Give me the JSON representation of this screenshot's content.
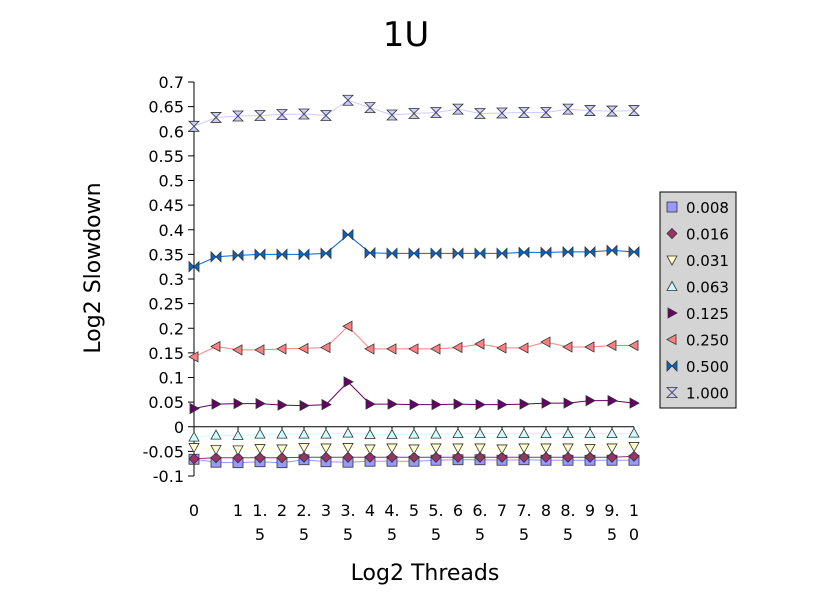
{
  "chart_data": {
    "type": "line",
    "title": "1U",
    "xlabel": "Log2 Threads",
    "ylabel": "Log2 Slowdown",
    "ylim": [
      -0.1,
      0.7
    ],
    "xlim": [
      0,
      10
    ],
    "yticks": [
      "-0.1",
      "-0.05",
      "0",
      "0.05",
      "0.1",
      "0.15",
      "0.2",
      "0.25",
      "0.3",
      "0.35",
      "0.4",
      "0.45",
      "0.5",
      "0.55",
      "0.6",
      "0.65",
      "0.7"
    ],
    "xticks": [
      {
        "value": 0,
        "line1": "0",
        "line2": ""
      },
      {
        "value": 1,
        "line1": "1",
        "line2": ""
      },
      {
        "value": 1.5,
        "line1": "1.",
        "line2": "5"
      },
      {
        "value": 2,
        "line1": "2",
        "line2": ""
      },
      {
        "value": 2.5,
        "line1": "2.",
        "line2": "5"
      },
      {
        "value": 3,
        "line1": "3",
        "line2": ""
      },
      {
        "value": 3.5,
        "line1": "3.",
        "line2": "5"
      },
      {
        "value": 4,
        "line1": "4",
        "line2": ""
      },
      {
        "value": 4.5,
        "line1": "4.",
        "line2": "5"
      },
      {
        "value": 5,
        "line1": "5",
        "line2": ""
      },
      {
        "value": 5.5,
        "line1": "5.",
        "line2": "5"
      },
      {
        "value": 6,
        "line1": "6",
        "line2": ""
      },
      {
        "value": 6.5,
        "line1": "6.",
        "line2": "5"
      },
      {
        "value": 7,
        "line1": "7",
        "line2": ""
      },
      {
        "value": 7.5,
        "line1": "7.",
        "line2": "5"
      },
      {
        "value": 8,
        "line1": "8",
        "line2": ""
      },
      {
        "value": 8.5,
        "line1": "8.",
        "line2": "5"
      },
      {
        "value": 9,
        "line1": "9",
        "line2": ""
      },
      {
        "value": 9.5,
        "line1": "9.",
        "line2": "5"
      },
      {
        "value": 10,
        "line1": "1",
        "line2": "0"
      }
    ],
    "x": [
      0,
      0.5,
      1,
      1.5,
      2,
      2.5,
      3,
      3.5,
      4,
      4.5,
      5,
      5.5,
      6,
      6.5,
      7,
      7.5,
      8,
      8.5,
      9,
      9.5,
      10
    ],
    "legend_position": "right",
    "grid": false,
    "series": [
      {
        "name": "0.008",
        "marker": "square",
        "color": "#9999ff",
        "line": "#9999ff",
        "values": [
          -0.066,
          -0.072,
          -0.073,
          -0.071,
          -0.073,
          -0.067,
          -0.071,
          -0.072,
          -0.07,
          -0.07,
          -0.07,
          -0.068,
          -0.067,
          -0.067,
          -0.068,
          -0.067,
          -0.068,
          -0.068,
          -0.068,
          -0.068,
          -0.068
        ]
      },
      {
        "name": "0.016",
        "marker": "diamond",
        "color": "#993366",
        "line": "#993366",
        "values": [
          -0.065,
          -0.063,
          -0.063,
          -0.063,
          -0.063,
          -0.062,
          -0.062,
          -0.062,
          -0.062,
          -0.062,
          -0.062,
          -0.062,
          -0.062,
          -0.062,
          -0.062,
          -0.062,
          -0.062,
          -0.062,
          -0.062,
          -0.062,
          -0.06
        ]
      },
      {
        "name": "0.031",
        "marker": "triangle-down",
        "color": "#ffffcc",
        "line": "#ffffcc",
        "values": [
          -0.042,
          -0.046,
          -0.047,
          -0.044,
          -0.045,
          -0.042,
          -0.043,
          -0.042,
          -0.045,
          -0.043,
          -0.045,
          -0.043,
          -0.043,
          -0.043,
          -0.045,
          -0.043,
          -0.043,
          -0.043,
          -0.044,
          -0.043,
          -0.04
        ]
      },
      {
        "name": "0.063",
        "marker": "triangle-up",
        "color": "#ccffff",
        "line": "#ccffff",
        "values": [
          -0.021,
          -0.017,
          -0.018,
          -0.015,
          -0.015,
          -0.015,
          -0.015,
          -0.013,
          -0.016,
          -0.016,
          -0.015,
          -0.015,
          -0.014,
          -0.014,
          -0.014,
          -0.014,
          -0.014,
          -0.014,
          -0.014,
          -0.014,
          -0.013
        ]
      },
      {
        "name": "0.125",
        "marker": "triangle-right",
        "color": "#660066",
        "line": "#660066",
        "values": [
          0.037,
          0.046,
          0.047,
          0.047,
          0.044,
          0.043,
          0.045,
          0.091,
          0.046,
          0.046,
          0.045,
          0.045,
          0.046,
          0.045,
          0.045,
          0.046,
          0.048,
          0.048,
          0.053,
          0.053,
          0.048
        ]
      },
      {
        "name": "0.250",
        "marker": "triangle-left",
        "color": "#ff8080",
        "line": "#ff8080",
        "values": [
          0.142,
          0.163,
          0.156,
          0.156,
          0.158,
          0.159,
          0.161,
          0.204,
          0.158,
          0.158,
          0.158,
          0.158,
          0.161,
          0.168,
          0.16,
          0.16,
          0.172,
          0.162,
          0.162,
          0.165,
          0.165
        ]
      },
      {
        "name": "0.500",
        "marker": "bowtie",
        "color": "#0066cc",
        "line": "#0066cc",
        "values": [
          0.325,
          0.345,
          0.348,
          0.35,
          0.35,
          0.35,
          0.352,
          0.39,
          0.353,
          0.352,
          0.352,
          0.352,
          0.352,
          0.352,
          0.352,
          0.354,
          0.354,
          0.355,
          0.355,
          0.358,
          0.355
        ]
      },
      {
        "name": "1.000",
        "marker": "hourglass",
        "color": "#ccccff",
        "line": "#ccccff",
        "values": [
          0.61,
          0.628,
          0.631,
          0.632,
          0.634,
          0.635,
          0.632,
          0.663,
          0.648,
          0.633,
          0.636,
          0.638,
          0.645,
          0.636,
          0.637,
          0.638,
          0.638,
          0.645,
          0.642,
          0.641,
          0.642
        ]
      }
    ]
  }
}
